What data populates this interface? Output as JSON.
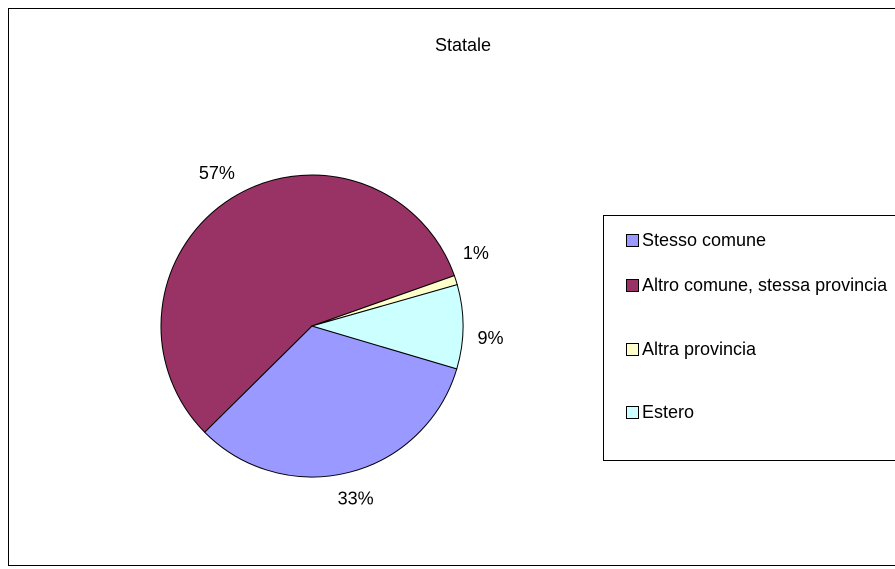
{
  "chart_data": {
    "type": "pie",
    "title": "Statale",
    "categories": [
      "Stesso comune",
      "Altro comune, stessa provincia",
      "Altra provincia",
      "Estero"
    ],
    "values": [
      33,
      57,
      1,
      9
    ],
    "value_labels": [
      "33%",
      "57%",
      "1%",
      "9%"
    ],
    "colors": [
      "#9999ff",
      "#993366",
      "#ffffcc",
      "#ccffff"
    ],
    "legend": "right"
  }
}
